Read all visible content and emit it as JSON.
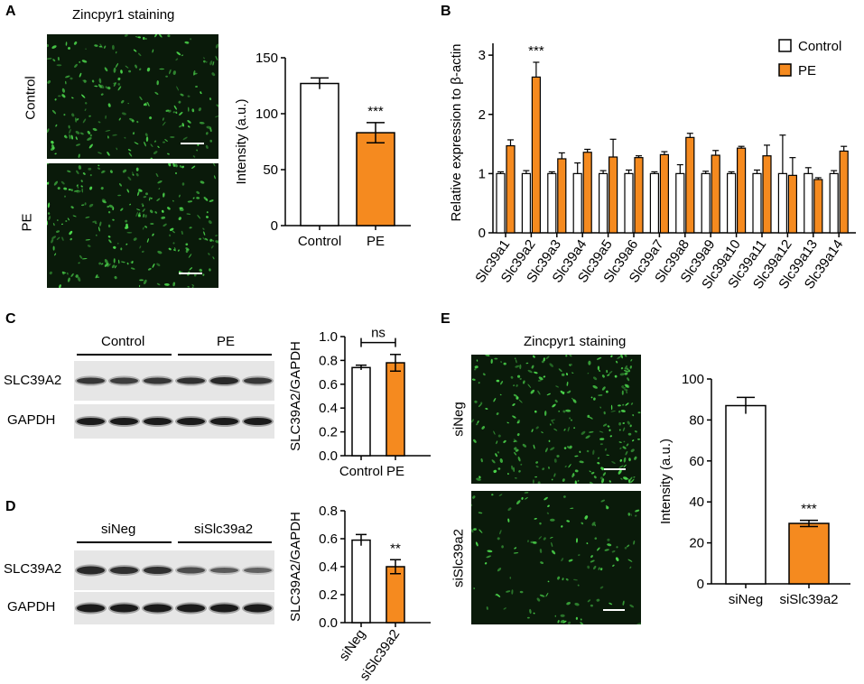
{
  "panels": {
    "A": {
      "letter": "A",
      "title": "Zincpyr1 staining",
      "row_labels": [
        "Control",
        "PE"
      ]
    },
    "B": {
      "letter": "B"
    },
    "C": {
      "letter": "C",
      "group_labels": [
        "Control",
        "PE"
      ],
      "blot_labels": [
        "SLC39A2",
        "GAPDH"
      ]
    },
    "D": {
      "letter": "D",
      "group_labels": [
        "siNeg",
        "siSlc39a2"
      ],
      "blot_labels": [
        "SLC39A2",
        "GAPDH"
      ]
    },
    "E": {
      "letter": "E",
      "title": "Zincpyr1 staining",
      "row_labels": [
        "siNeg",
        "siSlc39a2"
      ]
    }
  },
  "colors": {
    "control_fill": "#ffffff",
    "treatment_fill": "#f58a1f",
    "stroke": "#000000",
    "stain": "#4fe04f",
    "micro_bg": "#0a1a0a"
  },
  "chart_data": [
    {
      "panel": "A",
      "type": "bar",
      "categories": [
        "Control",
        "PE"
      ],
      "values": [
        127,
        83
      ],
      "errors": [
        5,
        9
      ],
      "ylabel": "Intensity (a.u.)",
      "ylim": [
        0,
        150
      ],
      "yticks": [
        "0",
        "50",
        "100",
        "150"
      ],
      "annotations": [
        {
          "category": "PE",
          "text": "***"
        }
      ]
    },
    {
      "panel": "B",
      "type": "bar",
      "categories": [
        "Slc39a1",
        "Slc39a2",
        "Slc39a3",
        "Slc39a4",
        "Slc39a5",
        "Slc39a6",
        "Slc39a7",
        "Slc39a8",
        "Slc39a9",
        "Slc39a10",
        "Slc39a11",
        "Slc39a12",
        "Slc39a13",
        "Slc39a14"
      ],
      "series": [
        {
          "name": "Control",
          "values": [
            1.0,
            1.0,
            1.0,
            1.0,
            1.0,
            1.0,
            1.0,
            1.0,
            1.0,
            1.0,
            1.0,
            1.0,
            1.0,
            1.0
          ],
          "errors": [
            0.03,
            0.05,
            0.03,
            0.18,
            0.05,
            0.06,
            0.03,
            0.15,
            0.04,
            0.03,
            0.06,
            0.65,
            0.1,
            0.05
          ]
        },
        {
          "name": "PE",
          "values": [
            1.47,
            2.63,
            1.25,
            1.36,
            1.28,
            1.27,
            1.32,
            1.61,
            1.31,
            1.43,
            1.3,
            0.97,
            0.9,
            1.38
          ],
          "errors": [
            0.1,
            0.25,
            0.1,
            0.05,
            0.3,
            0.03,
            0.05,
            0.07,
            0.08,
            0.03,
            0.18,
            0.3,
            0.03,
            0.08
          ]
        }
      ],
      "ylabel": "Relative expression to β-actin",
      "ylim": [
        0,
        3.2
      ],
      "yticks": [
        "0",
        "1",
        "2",
        "3"
      ],
      "legend": "top-right",
      "annotations": [
        {
          "category": "Slc39a2",
          "text": "***"
        }
      ]
    },
    {
      "panel": "C",
      "type": "bar",
      "categories": [
        "Control",
        "PE"
      ],
      "values": [
        0.74,
        0.78
      ],
      "errors": [
        0.02,
        0.07
      ],
      "ylabel": "SLC39A2/GAPDH",
      "ylim": [
        0,
        1.0
      ],
      "yticks": [
        "0.0",
        "0.2",
        "0.4",
        "0.6",
        "0.8",
        "1.0"
      ],
      "annotations": [
        {
          "category": "bracket",
          "text": "ns"
        }
      ]
    },
    {
      "panel": "D",
      "type": "bar",
      "categories": [
        "siNeg",
        "siSlc39a2"
      ],
      "values": [
        0.59,
        0.4
      ],
      "errors": [
        0.04,
        0.05
      ],
      "ylabel": "SLC39A2/GAPDH",
      "ylim": [
        0,
        0.8
      ],
      "yticks": [
        "0.0",
        "0.2",
        "0.4",
        "0.6",
        "0.8"
      ],
      "annotations": [
        {
          "category": "siSlc39a2",
          "text": "**"
        }
      ]
    },
    {
      "panel": "E",
      "type": "bar",
      "categories": [
        "siNeg",
        "siSlc39a2"
      ],
      "values": [
        87,
        29.5
      ],
      "errors": [
        4,
        1.5
      ],
      "ylabel": "Intensity (a.u.)",
      "ylim": [
        0,
        100
      ],
      "yticks": [
        "0",
        "20",
        "40",
        "60",
        "80",
        "100"
      ],
      "annotations": [
        {
          "category": "siSlc39a2",
          "text": "***"
        }
      ]
    }
  ]
}
